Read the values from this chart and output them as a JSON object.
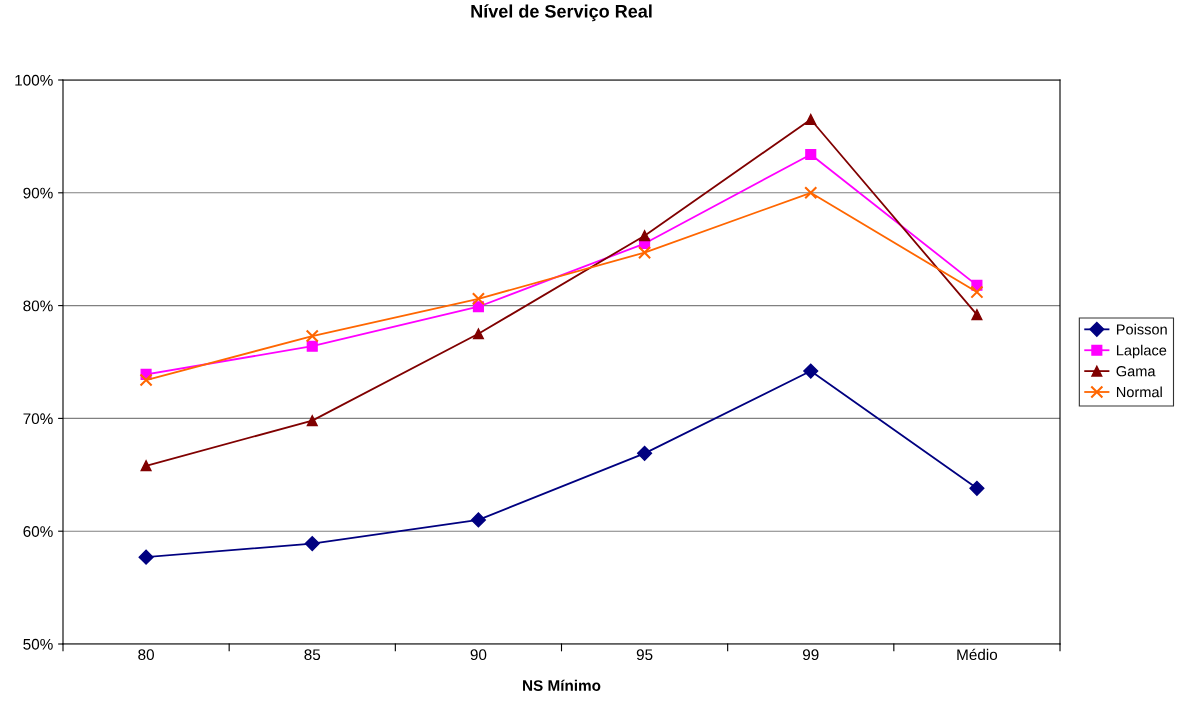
{
  "chart_data": {
    "type": "line",
    "title": "Nível de Serviço Real",
    "xlabel": "NS Mínimo",
    "categories": [
      "80",
      "85",
      "90",
      "95",
      "99",
      "Médio"
    ],
    "series": [
      {
        "name": "Poisson",
        "color": "#000080",
        "marker": "diamond",
        "values": [
          57.7,
          58.9,
          61.0,
          66.9,
          74.2,
          63.8
        ]
      },
      {
        "name": "Laplace",
        "color": "#ff00ff",
        "marker": "square",
        "values": [
          73.9,
          76.4,
          79.9,
          85.5,
          93.4,
          81.8
        ]
      },
      {
        "name": "Gama",
        "color": "#800000",
        "marker": "triangle",
        "values": [
          65.8,
          69.8,
          77.5,
          86.2,
          96.5,
          79.2
        ]
      },
      {
        "name": "Normal",
        "color": "#ff6600",
        "marker": "cross",
        "values": [
          73.4,
          77.3,
          80.6,
          84.7,
          90.0,
          81.2
        ]
      }
    ],
    "ylim": [
      50,
      100
    ],
    "yticks": [
      {
        "value": 50,
        "label": "50%"
      },
      {
        "value": 60,
        "label": "60%"
      },
      {
        "value": 70,
        "label": "70%"
      },
      {
        "value": 80,
        "label": "80%"
      },
      {
        "value": 90,
        "label": "90%"
      },
      {
        "value": 100,
        "label": "100%"
      }
    ],
    "grid": "y",
    "legend": "right",
    "line_style": "solid"
  }
}
